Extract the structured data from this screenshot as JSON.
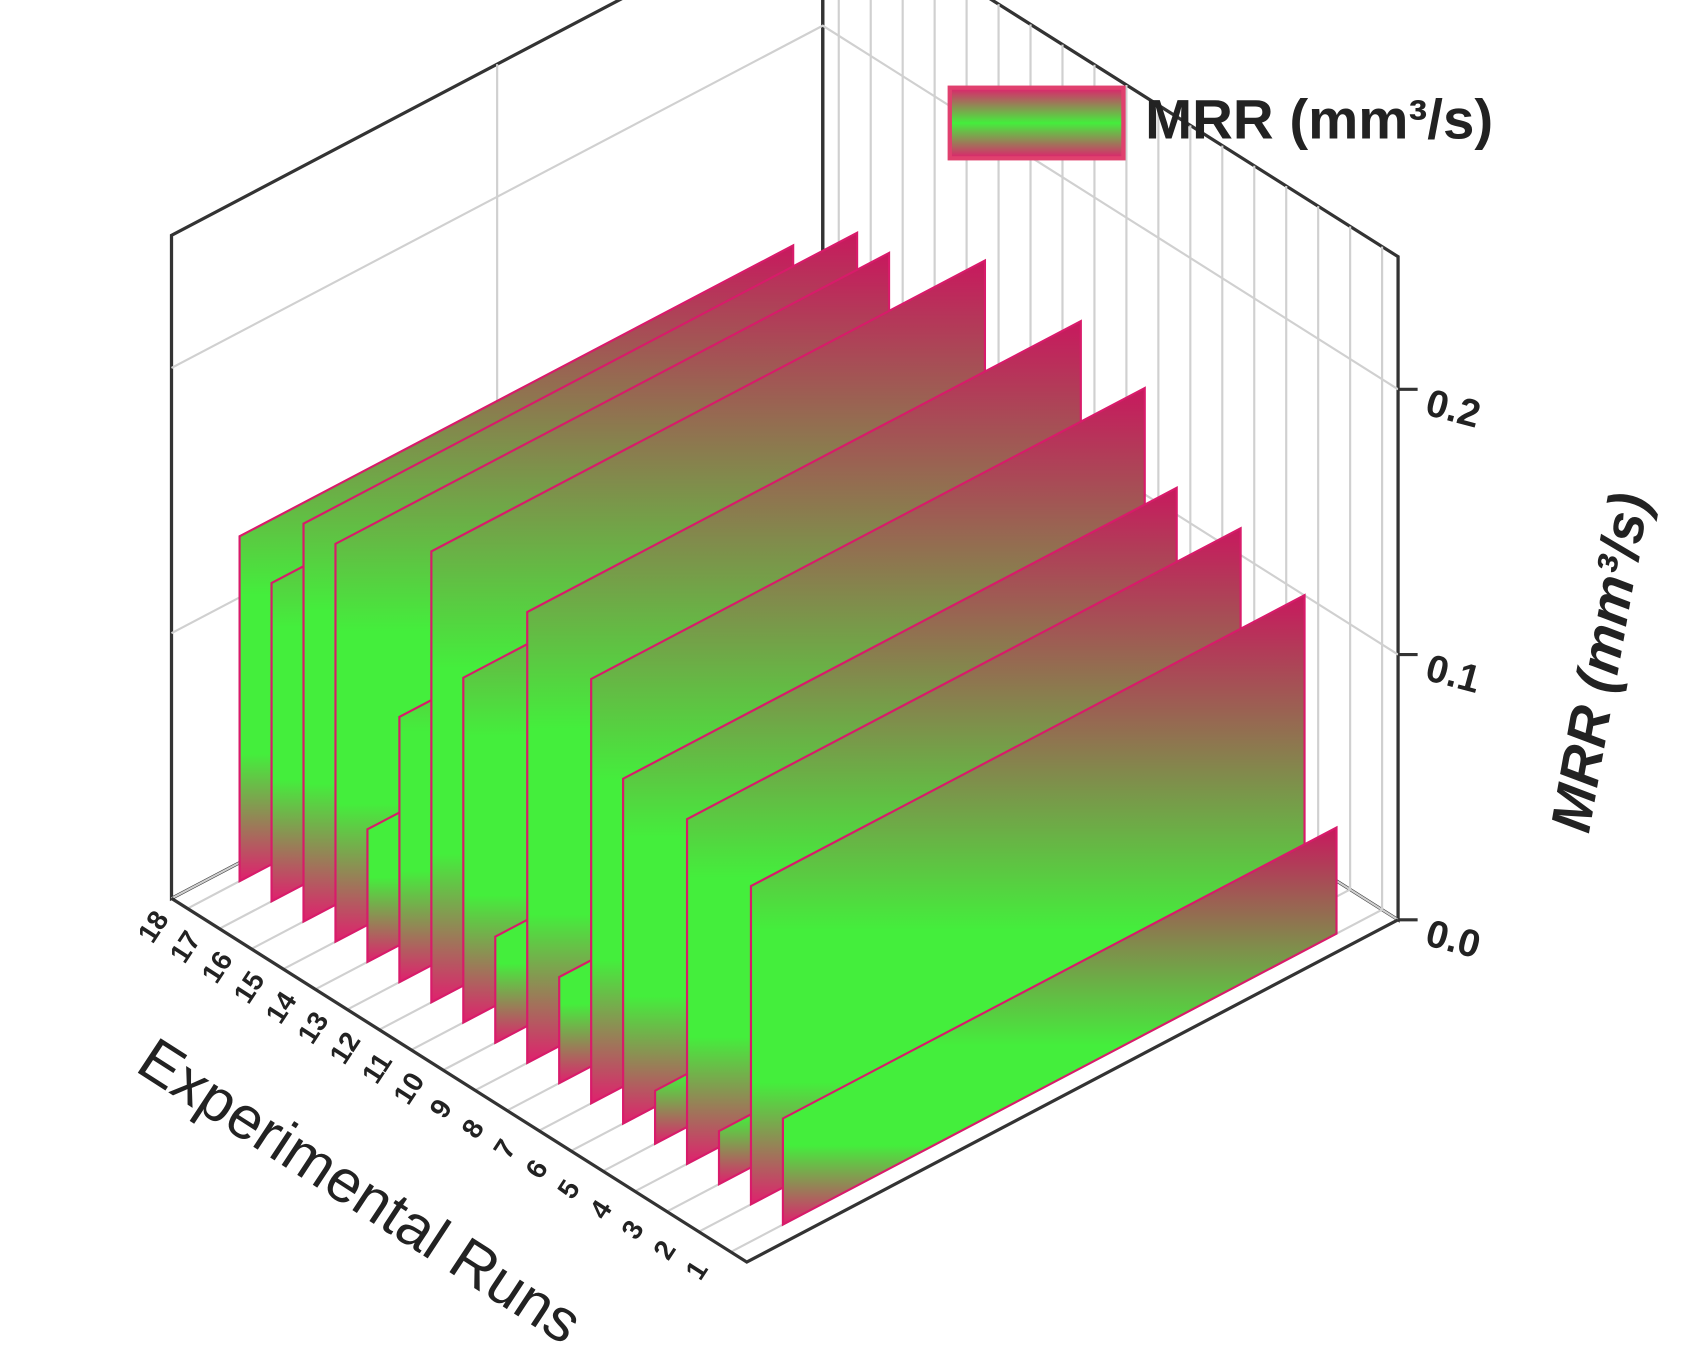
{
  "chart_data": {
    "type": "wall3d",
    "categories": [
      "1",
      "2",
      "3",
      "4",
      "5",
      "6",
      "7",
      "8",
      "9",
      "10",
      "11",
      "12",
      "13",
      "14",
      "15",
      "16",
      "17",
      "18"
    ],
    "series": [
      {
        "name": "MRR (mm³/s)",
        "gradient": [
          "#d81b6a",
          "#44ee3c"
        ],
        "values": [
          0.04,
          0.12,
          0.02,
          0.13,
          0.02,
          0.13,
          0.16,
          0.04,
          0.17,
          0.04,
          0.13,
          0.17,
          0.1,
          0.05,
          0.15,
          0.15,
          0.12,
          0.13
        ]
      }
    ],
    "xlabel": "Experimental Runs",
    "ylabel": "MRR (mm³/s)",
    "ylim": [
      0,
      0.25
    ],
    "yticks": [
      {
        "value": 0,
        "label": "0.0"
      },
      0.1,
      0.2
    ],
    "grid": true
  }
}
